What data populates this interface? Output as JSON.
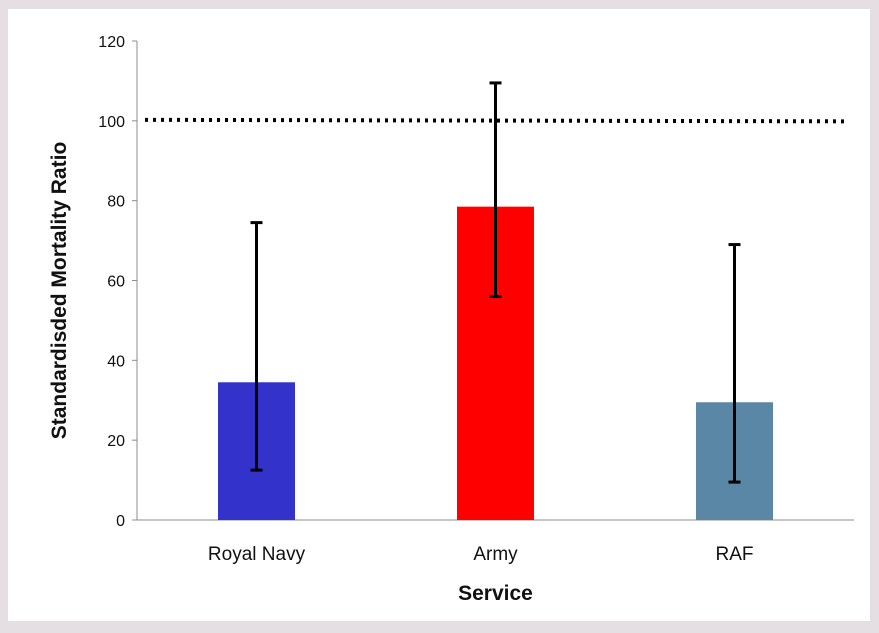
{
  "chart_data": {
    "type": "bar",
    "title": "",
    "xlabel": "Service",
    "ylabel": "Standardisded Mortality Ratio",
    "categories": [
      "Royal Navy",
      "Army",
      "RAF"
    ],
    "values": [
      34.5,
      78.5,
      29.5
    ],
    "error_low": [
      12.5,
      56,
      9.5
    ],
    "error_high": [
      74.5,
      109.5,
      69
    ],
    "colors": [
      "#3333cc",
      "#ff0000",
      "#5b87a6"
    ],
    "ylim": [
      0,
      120
    ],
    "yticks": [
      "0",
      "20",
      "40",
      "60",
      "80",
      "100",
      "120"
    ],
    "reference_line": 100,
    "grid": false,
    "legend": "none"
  }
}
